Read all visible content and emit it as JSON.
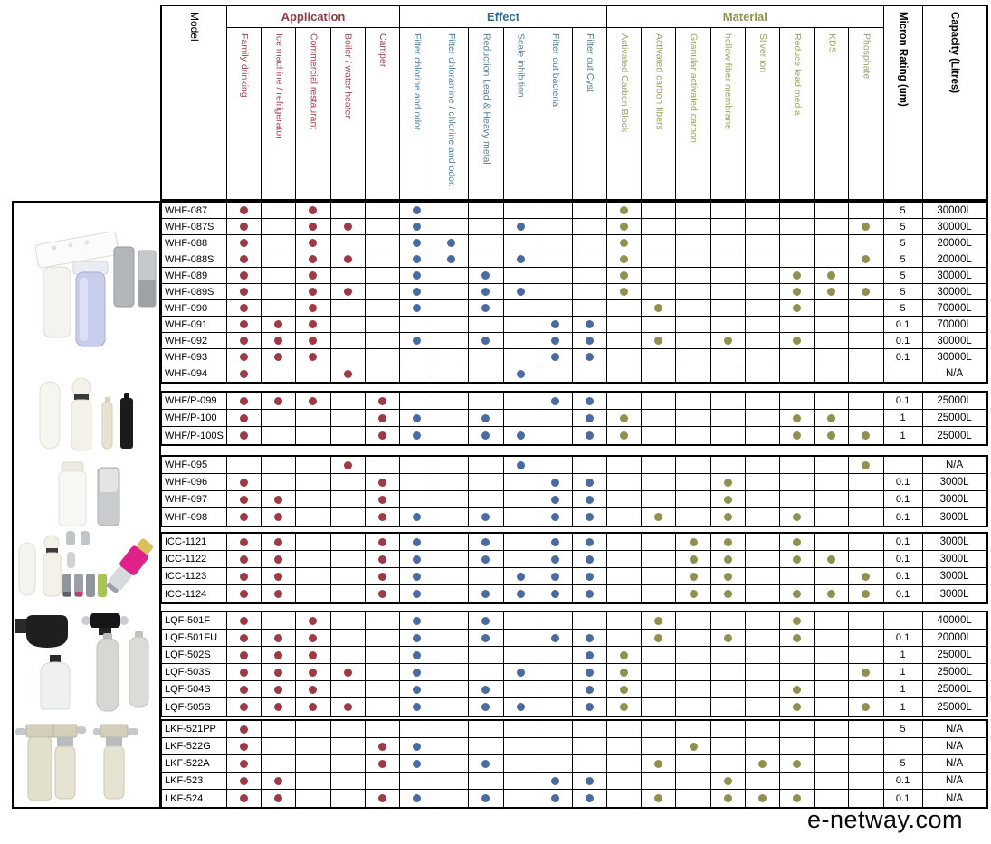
{
  "watermark": "e-netway.com",
  "header": {
    "model_label": "Model",
    "micron_label": "Micron Rating (um)",
    "capacity_label": "Capacity (Litres)",
    "groups": [
      {
        "label": "Application",
        "title_color": "#8e3b41",
        "label_color": "#9e4549",
        "dot_color": "#9e3a45",
        "columns": [
          "Family drinking",
          "Ice machine / refrigerator",
          "Commercial restaurant",
          "Boiler / water heater",
          "Camper"
        ]
      },
      {
        "label": "Effect",
        "title_color": "#336f93",
        "label_color": "#4d7f9d",
        "dot_color": "#4a6ba2",
        "columns": [
          "Filter chlorine and odor.",
          "Filter chloramine / chlorine and odor.",
          "Reduction Lead & Heavy metal",
          "Scale inhibition",
          "Filter out bacteria",
          "Filter out Cyst"
        ]
      },
      {
        "label": "Material",
        "title_color": "#8f9151",
        "label_color": "#9fa163",
        "dot_color": "#8e9150",
        "columns": [
          "Activated Carbon Block",
          "Activated carbon fibers",
          "Granular activated carbon",
          "hollow fiber membrane",
          "Sliver ion",
          "Reduce lead media",
          "KDS",
          "Phosphate"
        ]
      }
    ]
  },
  "column_keys": [
    "family-drinking",
    "ice-machine-refrigerator",
    "commercial-restaurant",
    "boiler-water-heater",
    "camper",
    "filter-chlorine-odor",
    "filter-chloramine",
    "reduction-lead-heavy-metal",
    "scale-inhibition",
    "filter-out-bacteria",
    "filter-out-cyst",
    "activated-carbon-block",
    "activated-carbon-fibers",
    "granular-activated-carbon",
    "hollow-fiber-membrane",
    "sliver-ion",
    "reduce-lead-media",
    "kds",
    "phosphate"
  ],
  "product_images": [
    "undersink-dual-housing-filter",
    "inline-filter-cartridges",
    "inline-filter-cartridges-2",
    "icc-inline-filters",
    "lqf-head-and-cartridges",
    "lkf-twin-filter-system"
  ],
  "body_groups": [
    {
      "rows": [
        {
          "model": "WHF-087",
          "dots": [
            1,
            0,
            1,
            0,
            0,
            1,
            0,
            0,
            0,
            0,
            0,
            1,
            0,
            0,
            0,
            0,
            0,
            0,
            0
          ],
          "micron": "5",
          "capacity": "30000L"
        },
        {
          "model": "WHF-087S",
          "dots": [
            1,
            0,
            1,
            1,
            0,
            1,
            0,
            0,
            1,
            0,
            0,
            1,
            0,
            0,
            0,
            0,
            0,
            0,
            1
          ],
          "micron": "5",
          "capacity": "30000L"
        },
        {
          "model": "WHF-088",
          "dots": [
            1,
            0,
            1,
            0,
            0,
            1,
            1,
            0,
            0,
            0,
            0,
            1,
            0,
            0,
            0,
            0,
            0,
            0,
            0
          ],
          "micron": "5",
          "capacity": "20000L"
        },
        {
          "model": "WHF-088S",
          "dots": [
            1,
            0,
            1,
            1,
            0,
            1,
            1,
            0,
            1,
            0,
            0,
            1,
            0,
            0,
            0,
            0,
            0,
            0,
            1
          ],
          "micron": "5",
          "capacity": "20000L"
        },
        {
          "model": "WHF-089",
          "dots": [
            1,
            0,
            1,
            0,
            0,
            1,
            0,
            1,
            0,
            0,
            0,
            1,
            0,
            0,
            0,
            0,
            1,
            1,
            0
          ],
          "micron": "5",
          "capacity": "30000L"
        },
        {
          "model": "WHF-089S",
          "dots": [
            1,
            0,
            1,
            1,
            0,
            1,
            0,
            1,
            1,
            0,
            0,
            1,
            0,
            0,
            0,
            0,
            1,
            1,
            1
          ],
          "micron": "5",
          "capacity": "30000L"
        },
        {
          "model": "WHF-090",
          "dots": [
            1,
            0,
            1,
            0,
            0,
            1,
            0,
            1,
            0,
            0,
            0,
            0,
            1,
            0,
            0,
            0,
            1,
            0,
            0
          ],
          "micron": "5",
          "capacity": "70000L"
        },
        {
          "model": "WHF-091",
          "dots": [
            1,
            1,
            1,
            0,
            0,
            0,
            0,
            0,
            0,
            1,
            1,
            0,
            0,
            0,
            0,
            0,
            0,
            0,
            0
          ],
          "micron": "0.1",
          "capacity": "70000L"
        },
        {
          "model": "WHF-092",
          "dots": [
            1,
            1,
            1,
            0,
            0,
            1,
            0,
            1,
            0,
            1,
            1,
            0,
            1,
            0,
            1,
            0,
            1,
            0,
            0
          ],
          "micron": "0.1",
          "capacity": "30000L"
        },
        {
          "model": "WHF-093",
          "dots": [
            1,
            1,
            1,
            0,
            0,
            0,
            0,
            0,
            0,
            1,
            1,
            0,
            0,
            0,
            0,
            0,
            0,
            0,
            0
          ],
          "micron": "0.1",
          "capacity": "30000L"
        },
        {
          "model": "WHF-094",
          "dots": [
            1,
            0,
            0,
            1,
            0,
            0,
            0,
            0,
            1,
            0,
            0,
            0,
            0,
            0,
            0,
            0,
            0,
            0,
            0
          ],
          "micron": "",
          "capacity": "N/A"
        }
      ]
    },
    {
      "rows": [
        {
          "model": "WHF/P-099",
          "dots": [
            1,
            1,
            1,
            0,
            1,
            0,
            0,
            0,
            0,
            1,
            1,
            0,
            0,
            0,
            0,
            0,
            0,
            0,
            0
          ],
          "micron": "0.1",
          "capacity": "25000L"
        },
        {
          "model": "WHF/P-100",
          "dots": [
            1,
            0,
            0,
            0,
            1,
            1,
            0,
            1,
            0,
            0,
            1,
            1,
            0,
            0,
            0,
            0,
            1,
            1,
            0
          ],
          "micron": "1",
          "capacity": "25000L"
        },
        {
          "model": "WHF/P-100S",
          "dots": [
            1,
            0,
            0,
            0,
            1,
            1,
            0,
            1,
            1,
            0,
            1,
            1,
            0,
            0,
            0,
            0,
            1,
            1,
            1
          ],
          "micron": "1",
          "capacity": "25000L"
        }
      ]
    },
    {
      "rows": [
        {
          "model": "WHF-095",
          "dots": [
            0,
            0,
            0,
            1,
            0,
            0,
            0,
            0,
            1,
            0,
            0,
            0,
            0,
            0,
            0,
            0,
            0,
            0,
            1
          ],
          "micron": "",
          "capacity": "N/A"
        },
        {
          "model": "WHF-096",
          "dots": [
            1,
            0,
            0,
            0,
            1,
            0,
            0,
            0,
            0,
            1,
            1,
            0,
            0,
            0,
            1,
            0,
            0,
            0,
            0
          ],
          "micron": "0.1",
          "capacity": "3000L"
        },
        {
          "model": "WHF-097",
          "dots": [
            1,
            1,
            0,
            0,
            1,
            0,
            0,
            0,
            0,
            1,
            1,
            0,
            0,
            0,
            1,
            0,
            0,
            0,
            0
          ],
          "micron": "0.1",
          "capacity": "3000L"
        },
        {
          "model": "WHF-098",
          "dots": [
            1,
            1,
            0,
            0,
            1,
            1,
            0,
            1,
            0,
            1,
            1,
            0,
            1,
            0,
            1,
            0,
            1,
            0,
            0
          ],
          "micron": "0.1",
          "capacity": "3000L"
        }
      ]
    },
    {
      "rows": [
        {
          "model": "ICC-1121",
          "dots": [
            1,
            1,
            0,
            0,
            1,
            1,
            0,
            1,
            0,
            1,
            1,
            0,
            0,
            1,
            1,
            0,
            1,
            0,
            0
          ],
          "micron": "0.1",
          "capacity": "3000L"
        },
        {
          "model": "ICC-1122",
          "dots": [
            1,
            1,
            0,
            0,
            1,
            1,
            0,
            1,
            0,
            1,
            1,
            0,
            0,
            1,
            1,
            0,
            1,
            1,
            0
          ],
          "micron": "0.1",
          "capacity": "3000L"
        },
        {
          "model": "ICC-1123",
          "dots": [
            1,
            1,
            0,
            0,
            1,
            1,
            0,
            0,
            1,
            1,
            1,
            0,
            0,
            1,
            1,
            0,
            0,
            0,
            1
          ],
          "micron": "0.1",
          "capacity": "3000L"
        },
        {
          "model": "ICC-1124",
          "dots": [
            1,
            1,
            0,
            0,
            1,
            1,
            0,
            1,
            1,
            1,
            1,
            0,
            0,
            1,
            1,
            0,
            1,
            1,
            1
          ],
          "micron": "0.1",
          "capacity": "3000L"
        }
      ]
    },
    {
      "rows": [
        {
          "model": "LQF-501F",
          "dots": [
            1,
            0,
            1,
            0,
            0,
            1,
            0,
            1,
            0,
            0,
            0,
            0,
            1,
            0,
            0,
            0,
            1,
            0,
            0
          ],
          "micron": "",
          "capacity": "40000L"
        },
        {
          "model": "LQF-501FU",
          "dots": [
            1,
            1,
            1,
            0,
            0,
            1,
            0,
            1,
            0,
            1,
            1,
            0,
            1,
            0,
            1,
            0,
            1,
            0,
            0
          ],
          "micron": "0.1",
          "capacity": "20000L"
        },
        {
          "model": "LQF-502S",
          "dots": [
            1,
            1,
            1,
            0,
            0,
            1,
            0,
            0,
            0,
            0,
            1,
            1,
            0,
            0,
            0,
            0,
            0,
            0,
            0
          ],
          "micron": "1",
          "capacity": "25000L"
        },
        {
          "model": "LQF-503S",
          "dots": [
            1,
            1,
            1,
            1,
            0,
            1,
            0,
            0,
            1,
            0,
            1,
            1,
            0,
            0,
            0,
            0,
            0,
            0,
            1
          ],
          "micron": "1",
          "capacity": "25000L"
        },
        {
          "model": "LQF-504S",
          "dots": [
            1,
            1,
            1,
            0,
            0,
            1,
            0,
            1,
            0,
            0,
            1,
            1,
            0,
            0,
            0,
            0,
            1,
            0,
            0
          ],
          "micron": "1",
          "capacity": "25000L"
        },
        {
          "model": "LQF-505S",
          "dots": [
            1,
            1,
            1,
            1,
            0,
            1,
            0,
            1,
            1,
            0,
            1,
            1,
            0,
            0,
            0,
            0,
            1,
            0,
            1
          ],
          "micron": "1",
          "capacity": "25000L"
        }
      ]
    },
    {
      "rows": [
        {
          "model": "LKF-521PP",
          "dots": [
            1,
            0,
            0,
            0,
            0,
            0,
            0,
            0,
            0,
            0,
            0,
            0,
            0,
            0,
            0,
            0,
            0,
            0,
            0
          ],
          "micron": "5",
          "capacity": "N/A"
        },
        {
          "model": "LKF-522G",
          "dots": [
            1,
            0,
            0,
            0,
            1,
            1,
            0,
            0,
            0,
            0,
            0,
            0,
            0,
            1,
            0,
            0,
            0,
            0,
            0
          ],
          "micron": "",
          "capacity": "N/A"
        },
        {
          "model": "LKF-522A",
          "dots": [
            1,
            0,
            0,
            0,
            1,
            1,
            0,
            1,
            0,
            0,
            0,
            0,
            1,
            0,
            0,
            1,
            1,
            0,
            0
          ],
          "micron": "5",
          "capacity": "N/A"
        },
        {
          "model": "LKF-523",
          "dots": [
            1,
            1,
            0,
            0,
            0,
            0,
            0,
            0,
            0,
            1,
            1,
            0,
            0,
            0,
            1,
            0,
            0,
            0,
            0
          ],
          "micron": "0.1",
          "capacity": "N/A"
        },
        {
          "model": "LKF-524",
          "dots": [
            1,
            1,
            0,
            0,
            1,
            1,
            0,
            1,
            0,
            1,
            1,
            0,
            1,
            0,
            1,
            1,
            1,
            0,
            0
          ],
          "micron": "0.1",
          "capacity": "N/A"
        }
      ]
    }
  ]
}
